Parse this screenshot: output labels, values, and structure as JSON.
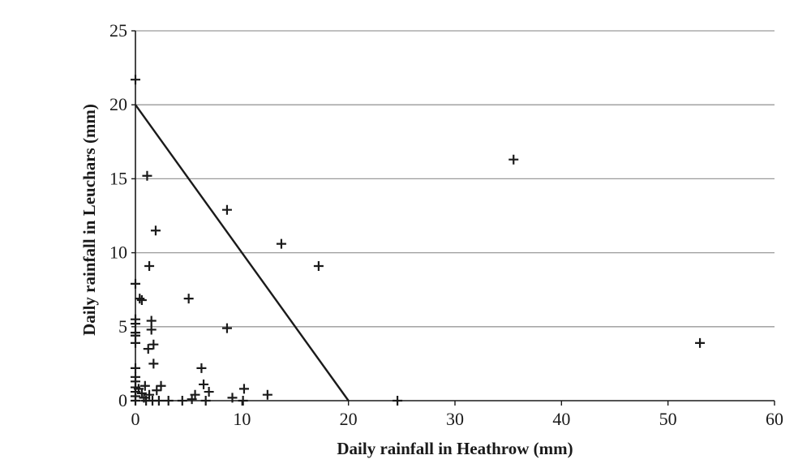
{
  "chart_data": {
    "type": "scatter",
    "title": "",
    "xlabel": "Daily rainfall in Heathrow (mm)",
    "ylabel": "Daily rainfall in Leuchars (mm)",
    "xlim": [
      0,
      60
    ],
    "ylim": [
      0,
      25
    ],
    "xticks": [
      "0",
      "10",
      "20",
      "30",
      "40",
      "50",
      "60"
    ],
    "yticks": [
      "0",
      "5",
      "10",
      "15",
      "20",
      "25"
    ],
    "grid": "horizontal",
    "marker": "plus",
    "points": [
      [
        0.0,
        21.7
      ],
      [
        1.1,
        15.2
      ],
      [
        1.9,
        11.5
      ],
      [
        1.3,
        9.1
      ],
      [
        0.0,
        7.9
      ],
      [
        0.4,
        6.9
      ],
      [
        0.6,
        6.8
      ],
      [
        0.0,
        5.5
      ],
      [
        0.0,
        5.2
      ],
      [
        0.0,
        4.6
      ],
      [
        0.0,
        4.4
      ],
      [
        0.0,
        3.9
      ],
      [
        0.0,
        2.2
      ],
      [
        0.0,
        1.6
      ],
      [
        0.0,
        1.3
      ],
      [
        0.0,
        0.9
      ],
      [
        0.0,
        0.6
      ],
      [
        0.0,
        0.3
      ],
      [
        0.0,
        0.0
      ],
      [
        1.5,
        5.4
      ],
      [
        1.5,
        4.8
      ],
      [
        1.7,
        3.8
      ],
      [
        1.2,
        3.5
      ],
      [
        1.7,
        2.5
      ],
      [
        0.3,
        0.8
      ],
      [
        0.6,
        0.5
      ],
      [
        0.8,
        0.2
      ],
      [
        0.9,
        1.0
      ],
      [
        1.0,
        0.0
      ],
      [
        1.3,
        0.4
      ],
      [
        1.6,
        0.0
      ],
      [
        2.0,
        0.7
      ],
      [
        2.4,
        1.0
      ],
      [
        2.2,
        0.0
      ],
      [
        3.1,
        0.0
      ],
      [
        4.4,
        0.0
      ],
      [
        5.0,
        6.9
      ],
      [
        5.3,
        0.1
      ],
      [
        5.6,
        0.4
      ],
      [
        6.2,
        2.2
      ],
      [
        6.4,
        1.1
      ],
      [
        6.9,
        0.6
      ],
      [
        6.6,
        0.0
      ],
      [
        8.6,
        12.9
      ],
      [
        8.6,
        4.9
      ],
      [
        9.1,
        0.2
      ],
      [
        10.2,
        0.8
      ],
      [
        10.1,
        0.0
      ],
      [
        12.4,
        0.4
      ],
      [
        13.7,
        10.6
      ],
      [
        17.2,
        9.1
      ],
      [
        24.6,
        0.0
      ],
      [
        35.5,
        16.3
      ],
      [
        53.0,
        3.9
      ]
    ],
    "threshold_line": [
      [
        0,
        20
      ],
      [
        20,
        0
      ]
    ]
  }
}
